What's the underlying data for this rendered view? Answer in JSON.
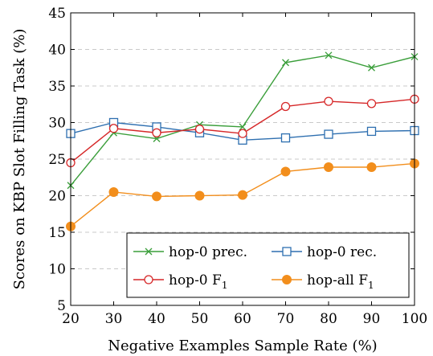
{
  "chart_data": {
    "type": "line",
    "xlabel": "Negative Examples Sample Rate (%)",
    "ylabel": "Scores on KBP Slot Filling Task (%)",
    "xlim": [
      20,
      100
    ],
    "ylim": [
      5,
      45
    ],
    "x_ticks": [
      20,
      30,
      40,
      50,
      60,
      70,
      80,
      90,
      100
    ],
    "y_ticks": [
      5,
      10,
      15,
      20,
      25,
      30,
      35,
      40,
      45
    ],
    "grid": "horizontal dashed",
    "legend_placement": "bottom-right",
    "x": [
      20,
      30,
      40,
      50,
      60,
      70,
      80,
      90,
      100
    ],
    "series": [
      {
        "key": "hop0prec",
        "name": "hop-0 prec.",
        "color": "#3a9e3a",
        "marker": "x",
        "values": [
          21.4,
          28.6,
          27.8,
          29.7,
          29.4,
          38.2,
          39.2,
          37.5,
          39.0
        ]
      },
      {
        "key": "hop0rec",
        "name": "hop-0 rec.",
        "color": "#2e6fb0",
        "marker": "square",
        "values": [
          28.5,
          30.0,
          29.4,
          28.6,
          27.6,
          27.9,
          28.4,
          28.8,
          28.9
        ]
      },
      {
        "key": "hop0f1",
        "name": "hop-0 F",
        "subscript": "1",
        "color": "#d62728",
        "marker": "circle-open",
        "values": [
          24.5,
          29.2,
          28.6,
          29.1,
          28.5,
          32.2,
          32.9,
          32.6,
          33.2
        ]
      },
      {
        "key": "hopallf1",
        "name": "hop-all F",
        "subscript": "1",
        "color": "#f28e1c",
        "marker": "circle-filled",
        "values": [
          15.8,
          20.5,
          19.9,
          20.0,
          20.1,
          23.3,
          23.9,
          23.9,
          24.4
        ]
      }
    ]
  }
}
